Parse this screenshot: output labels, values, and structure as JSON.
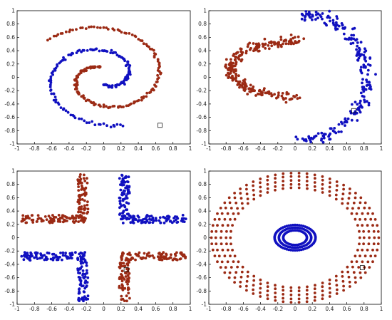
{
  "chart_data": [
    {
      "type": "scatter",
      "title": "",
      "xlabel": "",
      "ylabel": "",
      "xlim": [
        -1,
        1
      ],
      "ylim": [
        -1,
        1
      ],
      "xticks": [
        -1,
        -0.8,
        -0.6,
        -0.4,
        -0.2,
        0,
        0.2,
        0.4,
        0.6,
        0.8,
        1
      ],
      "xtick_labels": [
        "-1",
        "-0.8",
        "-0.6",
        "-0.4",
        "-0.2",
        "0",
        "0.2",
        "0.4",
        "0.6",
        "0.8",
        "1"
      ],
      "yticks": [
        -1,
        -0.8,
        -0.6,
        -0.4,
        -0.2,
        0,
        0.2,
        0.4,
        0.6,
        0.8,
        1
      ],
      "ytick_labels": [
        "-1",
        "-0.8",
        "-0.6",
        "-0.4",
        "-0.2",
        "0",
        "0.2",
        "0.4",
        "0.6",
        "0.8",
        "1"
      ],
      "grid": false,
      "generator": "spirals",
      "series": [
        {
          "color": "#1010c0",
          "points_desc": "inner arm of spiral + middle ring",
          "values": []
        },
        {
          "color": "#9b2a14",
          "points_desc": "outer arm of spiral + inner curl",
          "values": []
        }
      ],
      "marker_box": [
        0.65,
        -0.72
      ]
    },
    {
      "type": "scatter",
      "title": "",
      "xlabel": "",
      "ylabel": "",
      "xlim": [
        -1,
        1
      ],
      "ylim": [
        -1,
        1
      ],
      "xticks": [
        -1,
        -0.8,
        -0.6,
        -0.4,
        -0.2,
        0,
        0.2,
        0.4,
        0.6,
        0.8,
        1
      ],
      "xtick_labels": [
        "-1",
        "-0.8",
        "-0.6",
        "-0.4",
        "-0.2",
        "0",
        "0.2",
        "0.4",
        "0.6",
        "0.8",
        "1"
      ],
      "yticks": [
        -1,
        -0.8,
        -0.6,
        -0.4,
        -0.2,
        0,
        0.2,
        0.4,
        0.6,
        0.8,
        1
      ],
      "ytick_labels": [
        "-1",
        "-0.8",
        "-0.6",
        "-0.4",
        "-0.2",
        "0",
        "0.2",
        "0.4",
        "0.6",
        "0.8",
        "1"
      ],
      "grid": false,
      "generator": "moons",
      "series": [
        {
          "color": "#1010c0",
          "values": []
        },
        {
          "color": "#9b2a14",
          "values": []
        }
      ],
      "marker_box": [
        0.68,
        -0.5
      ]
    },
    {
      "type": "scatter",
      "title": "",
      "xlabel": "",
      "ylabel": "",
      "xlim": [
        -1,
        1
      ],
      "ylim": [
        -1,
        1
      ],
      "xticks": [
        -1,
        -0.8,
        -0.6,
        -0.4,
        -0.2,
        0,
        0.2,
        0.4,
        0.6,
        0.8,
        1
      ],
      "xtick_labels": [
        "-1",
        "-0.8",
        "-0.6",
        "-0.4",
        "-0.2",
        "0",
        "0.2",
        "0.4",
        "0.6",
        "0.8",
        "1"
      ],
      "yticks": [
        -1,
        -0.8,
        -0.6,
        -0.4,
        -0.2,
        0,
        0.2,
        0.4,
        0.6,
        0.8,
        1
      ],
      "ytick_labels": [
        "-1",
        "-0.8",
        "-0.6",
        "-0.4",
        "-0.2",
        "0",
        "0.2",
        "0.4",
        "0.6",
        "0.8",
        "1"
      ],
      "grid": false,
      "generator": "corners",
      "series": [
        {
          "color": "#1010c0",
          "values": []
        },
        {
          "color": "#9b2a14",
          "values": []
        }
      ],
      "marker_box": [
        0.26,
        -0.48
      ]
    },
    {
      "type": "scatter",
      "title": "",
      "xlabel": "",
      "ylabel": "",
      "xlim": [
        -1,
        1
      ],
      "ylim": [
        -1,
        1
      ],
      "xticks": [
        -1,
        -0.8,
        -0.6,
        -0.4,
        -0.2,
        0,
        0.2,
        0.4,
        0.6,
        0.8,
        1
      ],
      "xtick_labels": [
        "-1",
        "-0.8",
        "-0.6",
        "-0.4",
        "-0.2",
        "0",
        "0.2",
        "0.4",
        "0.6",
        "0.8",
        "1"
      ],
      "yticks": [
        -1,
        -0.8,
        -0.6,
        -0.4,
        -0.2,
        0,
        0.2,
        0.4,
        0.6,
        0.8,
        1
      ],
      "ytick_labels": [
        "-1",
        "-0.8",
        "-0.6",
        "-0.4",
        "-0.2",
        "0",
        "0.2",
        "0.4",
        "0.6",
        "0.8",
        "1"
      ],
      "grid": false,
      "generator": "rings",
      "series": [
        {
          "color": "#1010c0",
          "values": []
        },
        {
          "color": "#9b2a14",
          "values": []
        }
      ],
      "marker_box": [
        0.78,
        -0.45
      ]
    }
  ]
}
